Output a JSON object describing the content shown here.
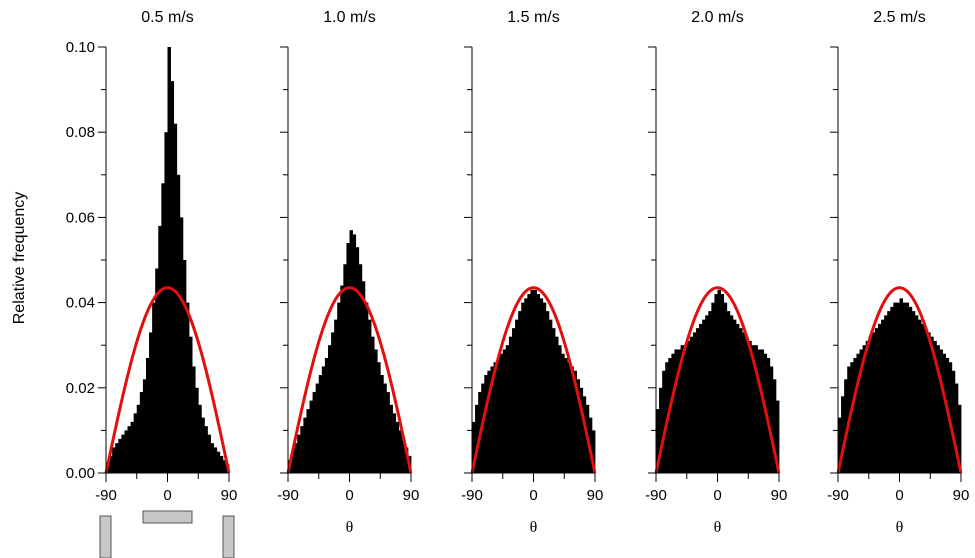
{
  "ylabel": "Relative frequency",
  "xlabel": "θ",
  "colors": {
    "bars": "#000000",
    "curve": "#e01010",
    "icons": "#c8c8c8"
  },
  "yticks": [
    "0.00",
    "0.02",
    "0.04",
    "0.06",
    "0.08",
    "0.10"
  ],
  "xticks": [
    "-90",
    "0",
    "90"
  ],
  "chart_data": [
    {
      "type": "bar",
      "title": "0.5 m/s",
      "xlim": [
        -90,
        90
      ],
      "ylim": [
        0,
        0.1
      ],
      "bin_width": 4.5,
      "hist": [
        0.002,
        0.004,
        0.006,
        0.007,
        0.008,
        0.009,
        0.01,
        0.011,
        0.012,
        0.014,
        0.016,
        0.019,
        0.022,
        0.027,
        0.033,
        0.04,
        0.048,
        0.058,
        0.068,
        0.08,
        0.1,
        0.092,
        0.082,
        0.07,
        0.06,
        0.05,
        0.04,
        0.032,
        0.025,
        0.02,
        0.016,
        0.013,
        0.011,
        0.009,
        0.007,
        0.006,
        0.005,
        0.004,
        0.003,
        0.002
      ],
      "curve_peak": 0.0435
    },
    {
      "type": "bar",
      "title": "1.0 m/s",
      "xlim": [
        -90,
        90
      ],
      "ylim": [
        0,
        0.1
      ],
      "bin_width": 4.5,
      "hist": [
        0.003,
        0.005,
        0.007,
        0.009,
        0.011,
        0.013,
        0.015,
        0.017,
        0.019,
        0.021,
        0.023,
        0.025,
        0.027,
        0.03,
        0.033,
        0.036,
        0.04,
        0.044,
        0.049,
        0.054,
        0.057,
        0.056,
        0.053,
        0.049,
        0.045,
        0.04,
        0.036,
        0.032,
        0.029,
        0.026,
        0.023,
        0.021,
        0.019,
        0.016,
        0.014,
        0.012,
        0.01,
        0.008,
        0.006,
        0.004
      ],
      "curve_peak": 0.0435
    },
    {
      "type": "bar",
      "title": "1.5 m/s",
      "xlim": [
        -90,
        90
      ],
      "ylim": [
        0,
        0.1
      ],
      "bin_width": 4.5,
      "hist": [
        0.012,
        0.016,
        0.019,
        0.021,
        0.023,
        0.024,
        0.025,
        0.026,
        0.027,
        0.028,
        0.029,
        0.03,
        0.032,
        0.034,
        0.036,
        0.038,
        0.04,
        0.041,
        0.042,
        0.043,
        0.043,
        0.042,
        0.041,
        0.04,
        0.038,
        0.036,
        0.034,
        0.032,
        0.03,
        0.028,
        0.027,
        0.026,
        0.025,
        0.024,
        0.022,
        0.02,
        0.018,
        0.016,
        0.013,
        0.01
      ],
      "curve_peak": 0.0435
    },
    {
      "type": "bar",
      "title": "2.0 m/s",
      "xlim": [
        -90,
        90
      ],
      "ylim": [
        0,
        0.1
      ],
      "bin_width": 4.5,
      "hist": [
        0.015,
        0.02,
        0.024,
        0.026,
        0.027,
        0.028,
        0.029,
        0.029,
        0.03,
        0.03,
        0.031,
        0.032,
        0.033,
        0.034,
        0.035,
        0.036,
        0.037,
        0.038,
        0.04,
        0.042,
        0.043,
        0.042,
        0.04,
        0.038,
        0.037,
        0.036,
        0.035,
        0.034,
        0.033,
        0.032,
        0.031,
        0.03,
        0.03,
        0.029,
        0.029,
        0.028,
        0.027,
        0.025,
        0.022,
        0.017
      ],
      "curve_peak": 0.0435
    },
    {
      "type": "bar",
      "title": "2.5 m/s",
      "xlim": [
        -90,
        90
      ],
      "ylim": [
        0,
        0.1
      ],
      "bin_width": 4.5,
      "hist": [
        0.013,
        0.018,
        0.022,
        0.025,
        0.026,
        0.027,
        0.028,
        0.029,
        0.03,
        0.031,
        0.032,
        0.033,
        0.034,
        0.035,
        0.036,
        0.037,
        0.038,
        0.039,
        0.04,
        0.04,
        0.041,
        0.04,
        0.04,
        0.039,
        0.038,
        0.037,
        0.036,
        0.035,
        0.034,
        0.033,
        0.032,
        0.031,
        0.03,
        0.029,
        0.028,
        0.027,
        0.026,
        0.024,
        0.021,
        0.016
      ],
      "curve_peak": 0.0435
    }
  ]
}
